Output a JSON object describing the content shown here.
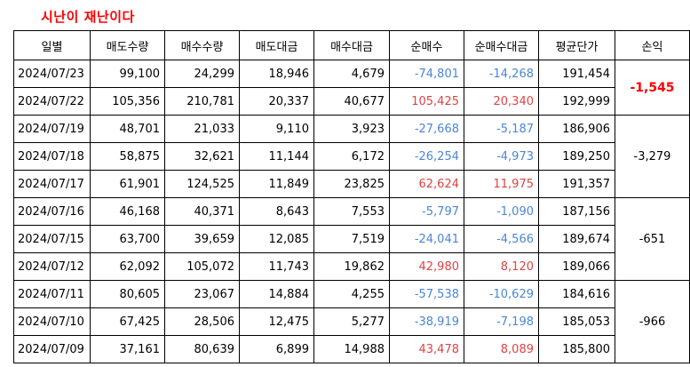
{
  "title": "시난이 재난이다",
  "colors": {
    "title": "#ff0000",
    "negative": "#4a86d8",
    "positive": "#e04343",
    "highlight": "#ff0000"
  },
  "columns": [
    "일별",
    "매도수량",
    "매수수량",
    "매도대금",
    "매수대금",
    "순매수",
    "순매수대금",
    "평균단가",
    "손익"
  ],
  "rows": [
    {
      "date": "2024/07/23",
      "sell_qty": "99,100",
      "buy_qty": "24,299",
      "sell_amt": "18,946",
      "buy_amt": "4,679",
      "net_buy": "-74,801",
      "net_buy_amt": "-14,268",
      "avg_price": "191,454"
    },
    {
      "date": "2024/07/22",
      "sell_qty": "105,356",
      "buy_qty": "210,781",
      "sell_amt": "20,337",
      "buy_amt": "40,677",
      "net_buy": "105,425",
      "net_buy_amt": "20,340",
      "avg_price": "192,999"
    },
    {
      "date": "2024/07/19",
      "sell_qty": "48,701",
      "buy_qty": "21,033",
      "sell_amt": "9,110",
      "buy_amt": "3,923",
      "net_buy": "-27,668",
      "net_buy_amt": "-5,187",
      "avg_price": "186,906"
    },
    {
      "date": "2024/07/18",
      "sell_qty": "58,875",
      "buy_qty": "32,621",
      "sell_amt": "11,144",
      "buy_amt": "6,172",
      "net_buy": "-26,254",
      "net_buy_amt": "-4,973",
      "avg_price": "189,250"
    },
    {
      "date": "2024/07/17",
      "sell_qty": "61,901",
      "buy_qty": "124,525",
      "sell_amt": "11,849",
      "buy_amt": "23,825",
      "net_buy": "62,624",
      "net_buy_amt": "11,975",
      "avg_price": "191,357"
    },
    {
      "date": "2024/07/16",
      "sell_qty": "46,168",
      "buy_qty": "40,371",
      "sell_amt": "8,643",
      "buy_amt": "7,553",
      "net_buy": "-5,797",
      "net_buy_amt": "-1,090",
      "avg_price": "187,156"
    },
    {
      "date": "2024/07/15",
      "sell_qty": "63,700",
      "buy_qty": "39,659",
      "sell_amt": "12,085",
      "buy_amt": "7,519",
      "net_buy": "-24,041",
      "net_buy_amt": "-4,566",
      "avg_price": "189,674"
    },
    {
      "date": "2024/07/12",
      "sell_qty": "62,092",
      "buy_qty": "105,072",
      "sell_amt": "11,743",
      "buy_amt": "19,862",
      "net_buy": "42,980",
      "net_buy_amt": "8,120",
      "avg_price": "189,066"
    },
    {
      "date": "2024/07/11",
      "sell_qty": "80,605",
      "buy_qty": "23,067",
      "sell_amt": "14,884",
      "buy_amt": "4,255",
      "net_buy": "-57,538",
      "net_buy_amt": "-10,629",
      "avg_price": "184,616"
    },
    {
      "date": "2024/07/10",
      "sell_qty": "67,425",
      "buy_qty": "28,506",
      "sell_amt": "12,475",
      "buy_amt": "5,277",
      "net_buy": "-38,919",
      "net_buy_amt": "-7,198",
      "avg_price": "185,053"
    },
    {
      "date": "2024/07/09",
      "sell_qty": "37,161",
      "buy_qty": "80,639",
      "sell_amt": "6,899",
      "buy_amt": "14,988",
      "net_buy": "43,478",
      "net_buy_amt": "8,089",
      "avg_price": "185,800"
    }
  ],
  "pl_groups": [
    {
      "value": "-1,545",
      "rows": 2,
      "highlight": true
    },
    {
      "value": "-3,279",
      "rows": 3,
      "highlight": false
    },
    {
      "value": "-651",
      "rows": 3,
      "highlight": false
    },
    {
      "value": "-966",
      "rows": 3,
      "highlight": false
    }
  ]
}
